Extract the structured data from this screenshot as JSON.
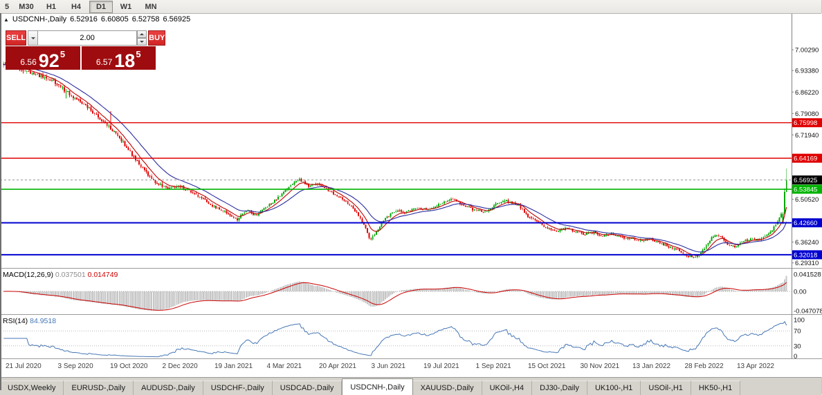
{
  "toolbar": {
    "timeframes": [
      "5",
      "M30",
      "H1",
      "H4",
      "D1",
      "W1",
      "MN"
    ],
    "active_timeframe": "D1"
  },
  "chart_header": {
    "collapse_icon": "▲",
    "title": "USDCNH-,Daily",
    "open": "6.52916",
    "high": "6.60805",
    "low": "6.52758",
    "close": "6.56925"
  },
  "trade_panel": {
    "sell_label": "SELL",
    "buy_label": "BUY",
    "volume": "2.00",
    "sell_price": {
      "prefix": "6.56",
      "big": "92",
      "sup": "5"
    },
    "buy_price": {
      "prefix": "6.57",
      "big": "18",
      "sup": "5"
    }
  },
  "tabs": {
    "items": [
      "USDX,Weekly",
      "EURUSD-,Daily",
      "AUDUSD-,Daily",
      "USDCHF-,Daily",
      "USDCAD-,Daily",
      "USDCNH-,Daily",
      "XAUUSD-,Daily",
      "UKOil-,H4",
      "DJ30-,Daily",
      "UK100-,H1",
      "USOil-,H1",
      "HK50-,H1"
    ],
    "active": "USDCNH-,Daily"
  },
  "chart_data": {
    "type": "candlestick",
    "title": "USDCNH-,Daily",
    "timeframe": "Daily",
    "num_candles": 440,
    "ohlc_current": {
      "open": 6.52916,
      "high": 6.60805,
      "low": 6.52758,
      "close": 6.56925
    },
    "y_axis_ticks": [
      "7.00290",
      "6.93380",
      "6.86220",
      "6.79080",
      "6.71940",
      "6.50520",
      "6.36240",
      "6.29310"
    ],
    "current_price": {
      "label": "6.56925",
      "chip_color": "#000000",
      "line_color": "#909090"
    },
    "horizontal_lines": [
      {
        "label": "6.75998",
        "price": 6.75998,
        "color": "#e00000",
        "width": 1.4
      },
      {
        "label": "6.64169",
        "price": 6.64169,
        "color": "#e00000",
        "width": 1.4
      },
      {
        "label": "6.53845",
        "price": 6.53845,
        "color": "#00b300",
        "width": 1.6
      },
      {
        "label": "6.42660",
        "price": 6.4266,
        "color": "#0000d0",
        "width": 2
      },
      {
        "label": "6.32018",
        "price": 6.32018,
        "color": "#0000d0",
        "width": 2
      }
    ],
    "moving_averages": [
      {
        "period": 8,
        "color": "#c00000"
      },
      {
        "period": 21,
        "color": "#2a2a9e"
      }
    ],
    "candle_colors": {
      "up": "#00a600",
      "down": "#e00000"
    },
    "price_path_anchors": [
      [
        0.0,
        6.958
      ],
      [
        0.02,
        6.94
      ],
      [
        0.042,
        6.918
      ],
      [
        0.062,
        6.9
      ],
      [
        0.083,
        6.858
      ],
      [
        0.1,
        6.825
      ],
      [
        0.118,
        6.788
      ],
      [
        0.135,
        6.745
      ],
      [
        0.15,
        6.703
      ],
      [
        0.165,
        6.65
      ],
      [
        0.18,
        6.598
      ],
      [
        0.195,
        6.56
      ],
      [
        0.21,
        6.54
      ],
      [
        0.225,
        6.549
      ],
      [
        0.24,
        6.528
      ],
      [
        0.255,
        6.505
      ],
      [
        0.27,
        6.478
      ],
      [
        0.285,
        6.46
      ],
      [
        0.298,
        6.437
      ],
      [
        0.31,
        6.468
      ],
      [
        0.322,
        6.452
      ],
      [
        0.335,
        6.478
      ],
      [
        0.353,
        6.515
      ],
      [
        0.368,
        6.556
      ],
      [
        0.378,
        6.572
      ],
      [
        0.39,
        6.548
      ],
      [
        0.403,
        6.557
      ],
      [
        0.419,
        6.528
      ],
      [
        0.433,
        6.508
      ],
      [
        0.448,
        6.47
      ],
      [
        0.46,
        6.424
      ],
      [
        0.468,
        6.369
      ],
      [
        0.476,
        6.398
      ],
      [
        0.487,
        6.44
      ],
      [
        0.5,
        6.468
      ],
      [
        0.515,
        6.462
      ],
      [
        0.53,
        6.477
      ],
      [
        0.544,
        6.472
      ],
      [
        0.558,
        6.492
      ],
      [
        0.572,
        6.506
      ],
      [
        0.585,
        6.49
      ],
      [
        0.6,
        6.47
      ],
      [
        0.615,
        6.462
      ],
      [
        0.63,
        6.49
      ],
      [
        0.643,
        6.499
      ],
      [
        0.658,
        6.486
      ],
      [
        0.67,
        6.448
      ],
      [
        0.682,
        6.428
      ],
      [
        0.694,
        6.408
      ],
      [
        0.706,
        6.398
      ],
      [
        0.718,
        6.409
      ],
      [
        0.73,
        6.398
      ],
      [
        0.742,
        6.388
      ],
      [
        0.754,
        6.395
      ],
      [
        0.766,
        6.382
      ],
      [
        0.778,
        6.389
      ],
      [
        0.79,
        6.378
      ],
      [
        0.802,
        6.373
      ],
      [
        0.814,
        6.368
      ],
      [
        0.826,
        6.373
      ],
      [
        0.838,
        6.36
      ],
      [
        0.85,
        6.347
      ],
      [
        0.862,
        6.334
      ],
      [
        0.874,
        6.317
      ],
      [
        0.884,
        6.311
      ],
      [
        0.895,
        6.34
      ],
      [
        0.905,
        6.378
      ],
      [
        0.915,
        6.386
      ],
      [
        0.925,
        6.352
      ],
      [
        0.935,
        6.348
      ],
      [
        0.945,
        6.366
      ],
      [
        0.955,
        6.373
      ],
      [
        0.965,
        6.368
      ],
      [
        0.975,
        6.386
      ],
      [
        0.982,
        6.403
      ],
      [
        0.988,
        6.428
      ],
      [
        0.993,
        6.452
      ],
      [
        1.0,
        6.52
      ]
    ],
    "last_candles": [
      {
        "open": 6.428,
        "high": 6.4615,
        "low": 6.4225,
        "close": 6.456
      },
      {
        "open": 6.456,
        "high": 6.541,
        "low": 6.4515,
        "close": 6.52916
      },
      {
        "open": 6.52916,
        "high": 6.60805,
        "low": 6.52758,
        "close": 6.56925
      }
    ],
    "x_labels": [
      "21 Jul 2020",
      "3 Sep 2020",
      "19 Oct 2020",
      "2 Dec 2020",
      "19 Jan 2021",
      "4 Mar 2021",
      "20 Apr 2021",
      "3 Jun 2021",
      "19 Jul 2021",
      "1 Sep 2021",
      "15 Oct 2021",
      "30 Nov 2021",
      "13 Jan 2022",
      "28 Feb 2022",
      "13 Apr 2022"
    ],
    "indicators": {
      "macd": {
        "label": "MACD(12,26,9)",
        "value": "0.037501",
        "signal_value": "0.014749",
        "axis_ticks": [
          "0.041528",
          "0.00",
          "-0.047078"
        ],
        "histogram_color": "#c6c6c6",
        "signal_color": "#cc0000"
      },
      "rsi": {
        "label": "RSI(14)",
        "value": "84.9518",
        "axis_ticks": [
          "100",
          "70",
          "30",
          "0"
        ],
        "level_lines": [
          70,
          30
        ],
        "line_color": "#4576b5"
      }
    }
  }
}
